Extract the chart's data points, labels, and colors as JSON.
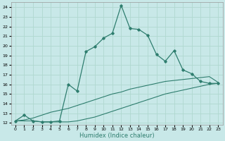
{
  "xlabel": "Humidex (Indice chaleur)",
  "bg_color": "#c8e8e8",
  "grid_color": "#b0d8d0",
  "line_color": "#2e7d6e",
  "xlim": [
    -0.5,
    23.5
  ],
  "ylim": [
    11.8,
    24.5
  ],
  "yticks": [
    12,
    13,
    14,
    15,
    16,
    17,
    18,
    19,
    20,
    21,
    22,
    23,
    24
  ],
  "xticks": [
    0,
    1,
    2,
    3,
    4,
    5,
    6,
    7,
    8,
    9,
    10,
    11,
    12,
    13,
    14,
    15,
    16,
    17,
    18,
    19,
    20,
    21,
    22,
    23
  ],
  "line1_x": [
    0,
    1,
    2,
    3,
    4,
    5,
    6,
    7,
    8,
    9,
    10,
    11,
    12,
    13,
    14,
    15,
    16,
    17,
    18,
    19,
    20,
    21,
    22,
    23
  ],
  "line1_y": [
    12.2,
    12.8,
    12.2,
    12.1,
    12.1,
    12.2,
    16.0,
    15.3,
    19.4,
    19.9,
    20.8,
    21.3,
    24.2,
    21.8,
    21.7,
    21.1,
    19.1,
    18.4,
    19.5,
    17.5,
    17.1,
    16.3,
    16.1,
    16.1
  ],
  "line2_x": [
    0,
    1,
    2,
    3,
    4,
    5,
    6,
    7,
    8,
    9,
    10,
    11,
    12,
    13,
    14,
    15,
    16,
    17,
    18,
    19,
    20,
    21,
    22,
    23
  ],
  "line2_y": [
    12.2,
    12.3,
    12.5,
    12.8,
    13.1,
    13.3,
    13.5,
    13.8,
    14.1,
    14.4,
    14.7,
    15.0,
    15.2,
    15.5,
    15.7,
    15.9,
    16.1,
    16.3,
    16.4,
    16.5,
    16.6,
    16.7,
    16.8,
    16.2
  ],
  "line3_x": [
    0,
    1,
    2,
    3,
    4,
    5,
    6,
    7,
    8,
    9,
    10,
    11,
    12,
    13,
    14,
    15,
    16,
    17,
    18,
    19,
    20,
    21,
    22,
    23
  ],
  "line3_y": [
    12.2,
    12.2,
    12.2,
    12.1,
    12.1,
    12.1,
    12.1,
    12.2,
    12.4,
    12.6,
    12.9,
    13.2,
    13.5,
    13.8,
    14.1,
    14.4,
    14.7,
    15.0,
    15.2,
    15.4,
    15.6,
    15.8,
    16.0,
    16.1
  ]
}
